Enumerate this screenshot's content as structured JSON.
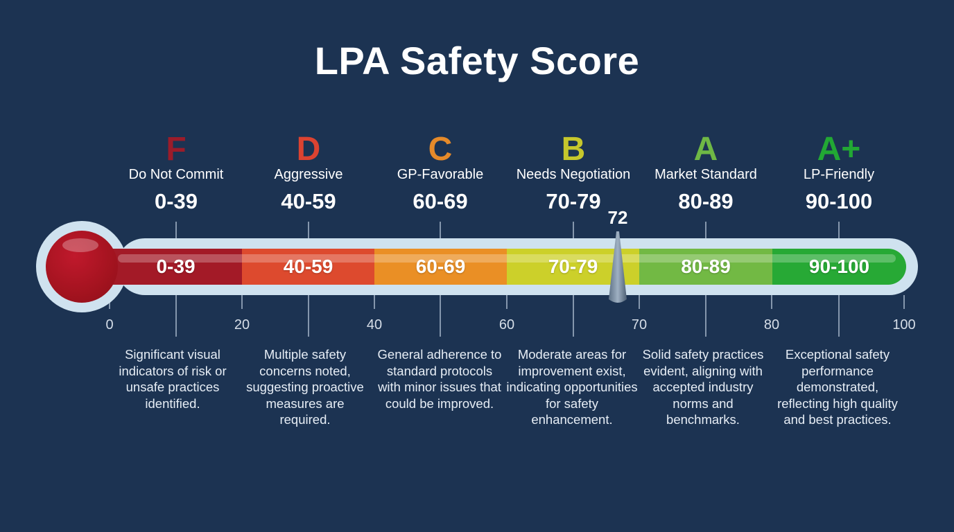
{
  "title": "LPA Safety Score",
  "needle_value": "72",
  "grades": [
    {
      "letter": "F",
      "label": "Do Not Commit",
      "range": "0-39",
      "color": "#9b1c2a",
      "desc": "Significant visual indicators of risk or unsafe practices identified."
    },
    {
      "letter": "D",
      "label": "Aggressive",
      "range": "40-59",
      "color": "#dc4331",
      "desc": "Multiple safety concerns noted, suggesting proactive measures are required."
    },
    {
      "letter": "C",
      "label": "GP-Favorable",
      "range": "60-69",
      "color": "#e58a2a",
      "desc": "General adherence to standard protocols with minor issues that could be improved."
    },
    {
      "letter": "B",
      "label": "Needs Negotiation",
      "range": "70-79",
      "color": "#c6c72c",
      "desc": "Moderate areas for improvement exist, indicating opportunities for safety enhancement."
    },
    {
      "letter": "A",
      "label": "Market Standard",
      "range": "80-89",
      "color": "#6fb845",
      "desc": "Solid safety practices evident, aligning with accepted industry norms and benchmarks."
    },
    {
      "letter": "A+",
      "label": "LP-Friendly",
      "range": "90-100",
      "color": "#22a834",
      "desc": "Exceptional safety performance demonstrated, reflecting high quality and best practices."
    }
  ],
  "segments": [
    {
      "label": "0-39",
      "color": "#a31a27"
    },
    {
      "label": "40-59",
      "color": "#dd4a2e"
    },
    {
      "label": "60-69",
      "color": "#ea8f25"
    },
    {
      "label": "70-79",
      "color": "#ccd02a"
    },
    {
      "label": "80-89",
      "color": "#72b944"
    },
    {
      "label": "90-100",
      "color": "#27a935"
    }
  ],
  "axis_ticks": [
    "0",
    "20",
    "40",
    "60",
    "70",
    "80",
    "100"
  ]
}
